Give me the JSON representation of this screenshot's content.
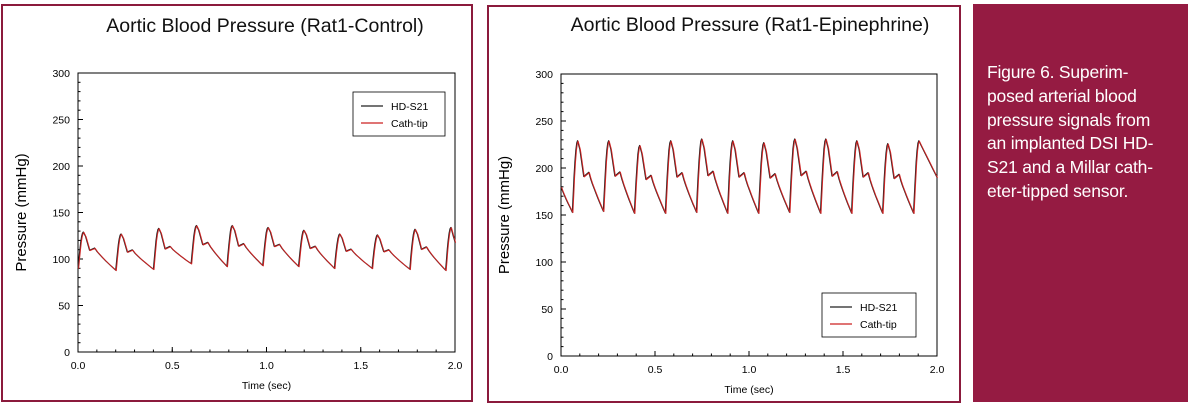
{
  "colors": {
    "frame": "#8b1a3c",
    "caption_bg": "#951b42",
    "caption_text": "#ffffff",
    "series_hd": "#222222",
    "series_cath": "#cc2222"
  },
  "caption": {
    "lines": [
      "Figure 6.  Superim-",
      "posed arterial blood",
      "pressure signals from",
      "an implanted DSI HD-",
      "S21 and a Millar cath-",
      "eter-tipped sensor."
    ]
  },
  "chart_data": [
    {
      "type": "line",
      "title": "Aortic Blood Pressure (Rat1-Control)",
      "xlabel": "Time (sec)",
      "ylabel": "Pressure (mmHg)",
      "xlim": [
        0,
        2.0
      ],
      "ylim": [
        0,
        300
      ],
      "xticks": [
        "0.0",
        "0.5",
        "1.0",
        "1.5",
        "2.0"
      ],
      "yticks": [
        "0",
        "50",
        "100",
        "150",
        "200",
        "250",
        "300"
      ],
      "legend_position": "top-right",
      "beats": [
        {
          "onset": 0.0,
          "min": 90,
          "peak": 129
        },
        {
          "onset": 0.2,
          "min": 88,
          "peak": 127
        },
        {
          "onset": 0.4,
          "min": 89,
          "peak": 133
        },
        {
          "onset": 0.6,
          "min": 95,
          "peak": 136
        },
        {
          "onset": 0.79,
          "min": 92,
          "peak": 136
        },
        {
          "onset": 0.98,
          "min": 93,
          "peak": 134
        },
        {
          "onset": 1.17,
          "min": 92,
          "peak": 131
        },
        {
          "onset": 1.36,
          "min": 90,
          "peak": 127
        },
        {
          "onset": 1.56,
          "min": 90,
          "peak": 126
        },
        {
          "onset": 1.76,
          "min": 89,
          "peak": 132
        },
        {
          "onset": 1.95,
          "min": 88,
          "peak": 134
        }
      ],
      "end_value": 118,
      "series": [
        {
          "name": "HD-S21",
          "color": "#222222"
        },
        {
          "name": "Cath-tip",
          "color": "#cc2222"
        }
      ]
    },
    {
      "type": "line",
      "title": "Aortic Blood Pressure (Rat1-Epinephrine)",
      "xlabel": "Time (sec)",
      "ylabel": "Pressure (mmHg)",
      "xlim": [
        0,
        2.0
      ],
      "ylim": [
        0,
        300
      ],
      "xticks": [
        "0.0",
        "0.5",
        "1.0",
        "1.5",
        "2.0"
      ],
      "yticks": [
        "0",
        "50",
        "100",
        "150",
        "200",
        "250",
        "300"
      ],
      "legend_position": "bottom-right",
      "start_value": 180,
      "beats": [
        {
          "onset": 0.06,
          "min": 153,
          "peak": 229
        },
        {
          "onset": 0.225,
          "min": 154,
          "peak": 229
        },
        {
          "onset": 0.39,
          "min": 152,
          "peak": 224
        },
        {
          "onset": 0.555,
          "min": 152,
          "peak": 229
        },
        {
          "onset": 0.72,
          "min": 153,
          "peak": 231
        },
        {
          "onset": 0.885,
          "min": 152,
          "peak": 229
        },
        {
          "onset": 1.05,
          "min": 152,
          "peak": 227
        },
        {
          "onset": 1.215,
          "min": 153,
          "peak": 231
        },
        {
          "onset": 1.38,
          "min": 152,
          "peak": 231
        },
        {
          "onset": 1.545,
          "min": 152,
          "peak": 229
        },
        {
          "onset": 1.71,
          "min": 152,
          "peak": 226
        },
        {
          "onset": 1.875,
          "min": 152,
          "peak": 229
        }
      ],
      "end_value": 190,
      "series": [
        {
          "name": "HD-S21",
          "color": "#222222"
        },
        {
          "name": "Cath-tip",
          "color": "#cc2222"
        }
      ]
    }
  ]
}
